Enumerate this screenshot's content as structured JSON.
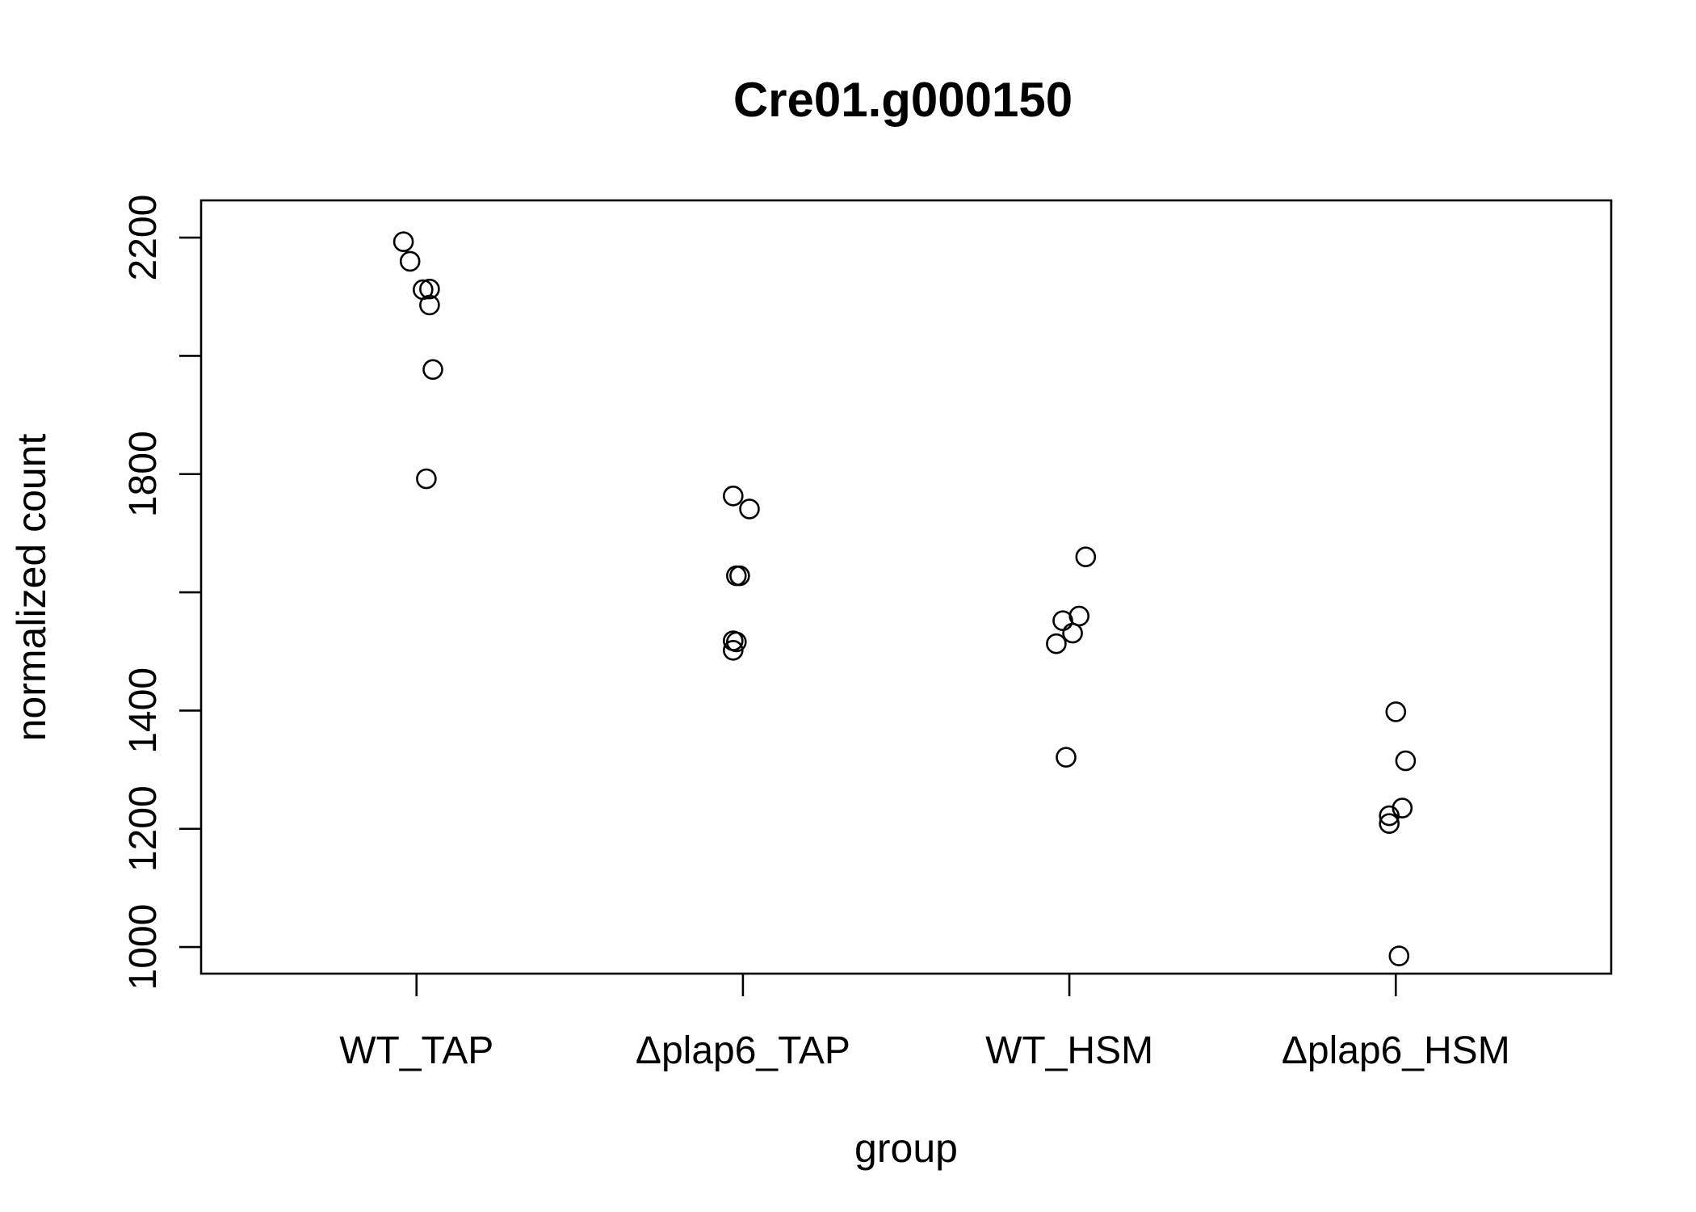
{
  "chart_data": {
    "type": "scatter",
    "title": "Cre01.g000150",
    "xlabel": "group",
    "ylabel": "normalized count",
    "categories": [
      "WT_TAP",
      "Δplap6_TAP",
      "WT_HSM",
      "Δplap6_HSM"
    ],
    "yticks": [
      "1000",
      "1200",
      "1400",
      "1800",
      "2200"
    ],
    "yminor_ticks": [
      1600,
      2000
    ],
    "ylim": [
      955,
      2263
    ],
    "xlim": [
      0.34,
      4.66
    ],
    "grid": false,
    "legend": "none",
    "points": [
      {
        "group": "WT_TAP",
        "x": 0.96,
        "y": 2193
      },
      {
        "group": "WT_TAP",
        "x": 0.98,
        "y": 2160
      },
      {
        "group": "WT_TAP",
        "x": 1.02,
        "y": 2112
      },
      {
        "group": "WT_TAP",
        "x": 1.04,
        "y": 2113
      },
      {
        "group": "WT_TAP",
        "x": 1.04,
        "y": 2086
      },
      {
        "group": "WT_TAP",
        "x": 1.05,
        "y": 1977
      },
      {
        "group": "WT_TAP",
        "x": 1.03,
        "y": 1792
      },
      {
        "group": "Δplap6_TAP",
        "x": 1.97,
        "y": 1763
      },
      {
        "group": "Δplap6_TAP",
        "x": 2.02,
        "y": 1741
      },
      {
        "group": "Δplap6_TAP",
        "x": 1.98,
        "y": 1628
      },
      {
        "group": "Δplap6_TAP",
        "x": 1.99,
        "y": 1628
      },
      {
        "group": "Δplap6_TAP",
        "x": 1.97,
        "y": 1518
      },
      {
        "group": "Δplap6_TAP",
        "x": 1.98,
        "y": 1516
      },
      {
        "group": "Δplap6_TAP",
        "x": 1.97,
        "y": 1502
      },
      {
        "group": "WT_HSM",
        "x": 3.05,
        "y": 1660
      },
      {
        "group": "WT_HSM",
        "x": 3.03,
        "y": 1560
      },
      {
        "group": "WT_HSM",
        "x": 2.98,
        "y": 1552
      },
      {
        "group": "WT_HSM",
        "x": 3.01,
        "y": 1531
      },
      {
        "group": "WT_HSM",
        "x": 2.96,
        "y": 1513
      },
      {
        "group": "WT_HSM",
        "x": 2.99,
        "y": 1321
      },
      {
        "group": "Δplap6_HSM",
        "x": 4.0,
        "y": 1398
      },
      {
        "group": "Δplap6_HSM",
        "x": 4.03,
        "y": 1315
      },
      {
        "group": "Δplap6_HSM",
        "x": 4.02,
        "y": 1235
      },
      {
        "group": "Δplap6_HSM",
        "x": 3.98,
        "y": 1222
      },
      {
        "group": "Δplap6_HSM",
        "x": 3.98,
        "y": 1209
      },
      {
        "group": "Δplap6_HSM",
        "x": 4.01,
        "y": 985
      }
    ]
  }
}
